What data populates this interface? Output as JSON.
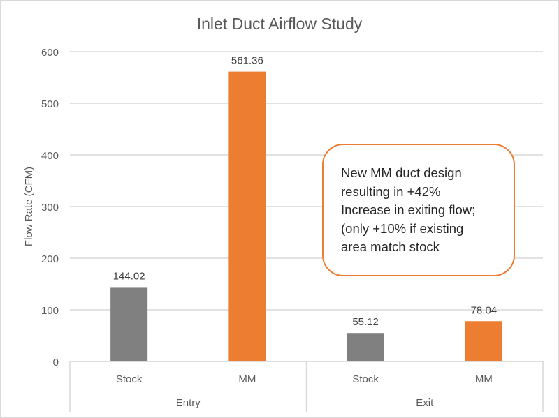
{
  "chart_data": {
    "type": "bar",
    "title": "Inlet Duct Airflow Study",
    "ylabel": "Flow Rate (CFM)",
    "xlabel": "",
    "ylim": [
      0,
      600
    ],
    "yticks": [
      0,
      100,
      200,
      300,
      400,
      500,
      600
    ],
    "grid": true,
    "groups": [
      {
        "label": "Entry",
        "categories": [
          "Stock",
          "MM"
        ],
        "values": [
          144.02,
          561.36
        ],
        "data_labels": [
          "144.02",
          "561.36"
        ]
      },
      {
        "label": "Exit",
        "categories": [
          "Stock",
          "MM"
        ],
        "values": [
          55.12,
          78.04
        ],
        "data_labels": [
          "55.12",
          "78.04"
        ]
      }
    ],
    "colors": {
      "Stock": "#808080",
      "MM": "#ed7d31"
    },
    "annotation": {
      "lines": [
        "New MM duct design",
        "resulting in +42%",
        "Increase in exiting flow;",
        "(only +10% if existing",
        "area match stock"
      ],
      "border_color": "#ed7d31"
    }
  }
}
